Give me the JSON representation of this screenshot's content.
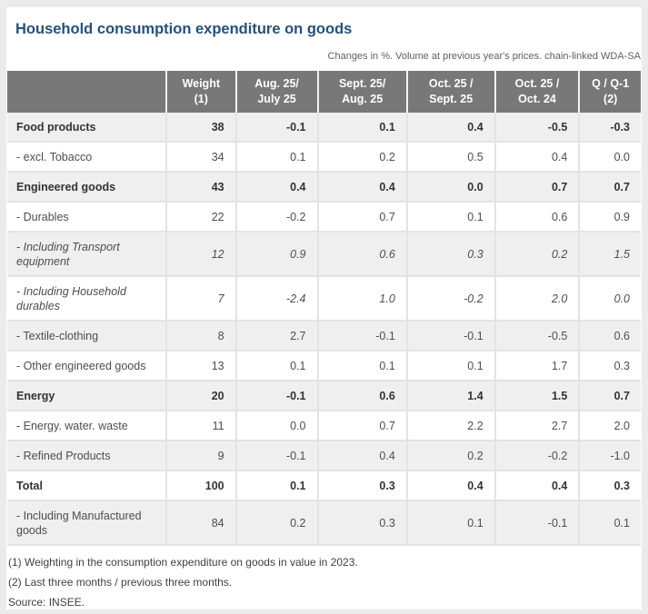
{
  "header": {
    "title": "Household consumption expenditure on goods",
    "subtitle": "Changes in %. Volume at previous year's prices. chain-linked WDA-SA"
  },
  "table": {
    "columns": [
      {
        "line1": "",
        "line2": ""
      },
      {
        "line1": "Weight",
        "line2": "(1)"
      },
      {
        "line1": "Aug. 25/",
        "line2": "July 25"
      },
      {
        "line1": "Sept. 25/",
        "line2": "Aug. 25"
      },
      {
        "line1": "Oct. 25 /",
        "line2": "Sept. 25"
      },
      {
        "line1": "Oct. 25 /",
        "line2": "Oct. 24"
      },
      {
        "line1": "Q / Q-1",
        "line2": "(2)"
      }
    ],
    "rows": [
      {
        "label": "Food products",
        "style": "category",
        "values": [
          "38",
          "-0.1",
          "0.1",
          "0.4",
          "-0.5",
          "-0.3"
        ]
      },
      {
        "label": "- excl. Tobacco",
        "style": "item",
        "values": [
          "34",
          "0.1",
          "0.2",
          "0.5",
          "0.4",
          "0.0"
        ]
      },
      {
        "label": "Engineered goods",
        "style": "category",
        "values": [
          "43",
          "0.4",
          "0.4",
          "0.0",
          "0.7",
          "0.7"
        ]
      },
      {
        "label": "- Durables",
        "style": "item",
        "values": [
          "22",
          "-0.2",
          "0.7",
          "0.1",
          "0.6",
          "0.9"
        ]
      },
      {
        "label": "- Including Transport equipment",
        "style": "item-italic",
        "values": [
          "12",
          "0.9",
          "0.6",
          "0.3",
          "0.2",
          "1.5"
        ]
      },
      {
        "label": "- Including Household durables",
        "style": "item-italic",
        "values": [
          "7",
          "-2.4",
          "1.0",
          "-0.2",
          "2.0",
          "0.0"
        ]
      },
      {
        "label": "- Textile-clothing",
        "style": "item",
        "values": [
          "8",
          "2.7",
          "-0.1",
          "-0.1",
          "-0.5",
          "0.6"
        ]
      },
      {
        "label": "- Other engineered goods",
        "style": "item",
        "values": [
          "13",
          "0.1",
          "0.1",
          "0.1",
          "1.7",
          "0.3"
        ]
      },
      {
        "label": "Energy",
        "style": "category",
        "values": [
          "20",
          "-0.1",
          "0.6",
          "1.4",
          "1.5",
          "0.7"
        ]
      },
      {
        "label": "- Energy. water. waste",
        "style": "item",
        "values": [
          "11",
          "0.0",
          "0.7",
          "2.2",
          "2.7",
          "2.0"
        ]
      },
      {
        "label": "- Refined Products",
        "style": "item",
        "values": [
          "9",
          "-0.1",
          "0.4",
          "0.2",
          "-0.2",
          "-1.0"
        ]
      },
      {
        "label": "Total",
        "style": "category",
        "values": [
          "100",
          "0.1",
          "0.3",
          "0.4",
          "0.4",
          "0.3"
        ]
      },
      {
        "label": "- Including Manufactured goods",
        "style": "item",
        "values": [
          "84",
          "0.2",
          "0.3",
          "0.1",
          "-0.1",
          "0.1"
        ]
      }
    ]
  },
  "footnotes": {
    "note1": "(1) Weighting in the consumption expenditure on goods in value in 2023.",
    "note2": "(2) Last three months / previous three months.",
    "source": "Source: INSEE."
  },
  "colors": {
    "title_blue": "#24517e",
    "header_bg": "#787878",
    "header_text": "#ffffff",
    "row_shade": "#efefef",
    "border": "#e3e3e3",
    "page_bg": "#ebebeb",
    "category_text": "#333333",
    "body_text": "#4d4d4d"
  },
  "chart_data": {
    "type": "table",
    "title": "Household consumption expenditure on goods",
    "subtitle": "Changes in %. Volume at previous year's prices. chain-linked WDA-SA",
    "columns": [
      "Weight (1)",
      "Aug. 25/ July 25",
      "Sept. 25/ Aug. 25",
      "Oct. 25 / Sept. 25",
      "Oct. 25 / Oct. 24",
      "Q / Q-1 (2)"
    ],
    "rows": [
      {
        "label": "Food products",
        "emphasis": "bold",
        "values": [
          38,
          -0.1,
          0.1,
          0.4,
          -0.5,
          -0.3
        ]
      },
      {
        "label": "- excl. Tobacco",
        "emphasis": "normal",
        "values": [
          34,
          0.1,
          0.2,
          0.5,
          0.4,
          0.0
        ]
      },
      {
        "label": "Engineered goods",
        "emphasis": "bold",
        "values": [
          43,
          0.4,
          0.4,
          0.0,
          0.7,
          0.7
        ]
      },
      {
        "label": "- Durables",
        "emphasis": "normal",
        "values": [
          22,
          -0.2,
          0.7,
          0.1,
          0.6,
          0.9
        ]
      },
      {
        "label": "- Including Transport equipment",
        "emphasis": "italic",
        "values": [
          12,
          0.9,
          0.6,
          0.3,
          0.2,
          1.5
        ]
      },
      {
        "label": "- Including Household durables",
        "emphasis": "italic",
        "values": [
          7,
          -2.4,
          1.0,
          -0.2,
          2.0,
          0.0
        ]
      },
      {
        "label": "- Textile-clothing",
        "emphasis": "normal",
        "values": [
          8,
          2.7,
          -0.1,
          -0.1,
          -0.5,
          0.6
        ]
      },
      {
        "label": "- Other engineered goods",
        "emphasis": "normal",
        "values": [
          13,
          0.1,
          0.1,
          0.1,
          1.7,
          0.3
        ]
      },
      {
        "label": "Energy",
        "emphasis": "bold",
        "values": [
          20,
          -0.1,
          0.6,
          1.4,
          1.5,
          0.7
        ]
      },
      {
        "label": "- Energy. water. waste",
        "emphasis": "normal",
        "values": [
          11,
          0.0,
          0.7,
          2.2,
          2.7,
          2.0
        ]
      },
      {
        "label": "- Refined Products",
        "emphasis": "normal",
        "values": [
          9,
          -0.1,
          0.4,
          0.2,
          -0.2,
          -1.0
        ]
      },
      {
        "label": "Total",
        "emphasis": "bold",
        "values": [
          100,
          0.1,
          0.3,
          0.4,
          0.4,
          0.3
        ]
      },
      {
        "label": "- Including Manufactured goods",
        "emphasis": "normal",
        "values": [
          84,
          0.2,
          0.3,
          0.1,
          -0.1,
          0.1
        ]
      }
    ],
    "footnotes": [
      "(1) Weighting in the consumption expenditure on goods in value in 2023.",
      "(2) Last three months / previous three months."
    ],
    "source": "Source: INSEE."
  }
}
